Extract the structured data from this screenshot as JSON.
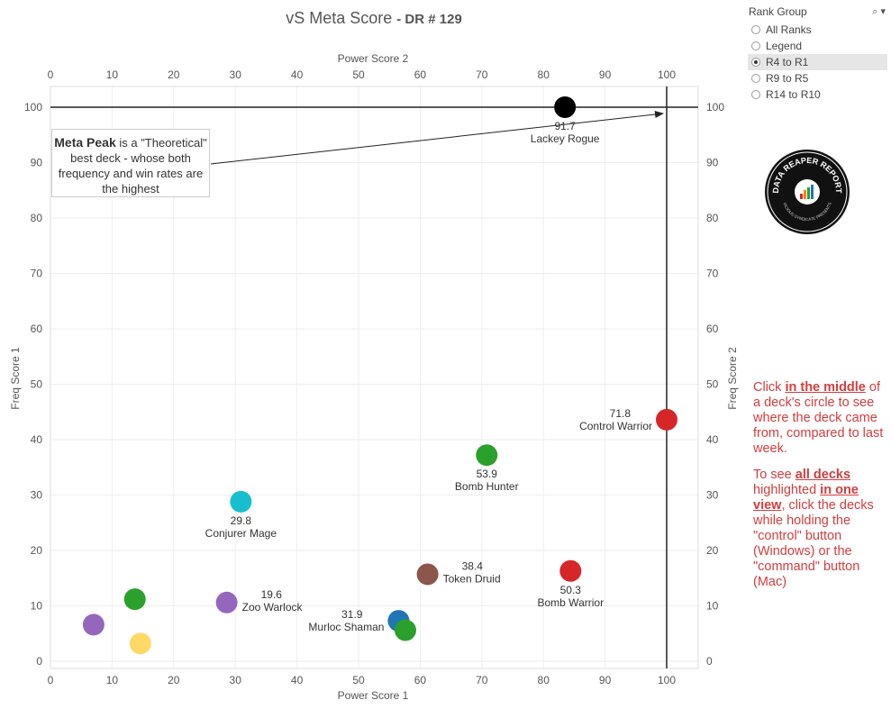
{
  "title": {
    "main": "vS Meta Score",
    "sub": "DR # 129"
  },
  "chart_data": {
    "type": "scatter",
    "x_top_label": "Power Score 2",
    "x_bottom_label": "Power Score 1",
    "y_left_label": "Freq Score 1",
    "y_right_label": "Freq Score 2",
    "xlim": [
      0,
      105
    ],
    "ylim": [
      0,
      105
    ],
    "x_ticks": [
      "0",
      "10",
      "20",
      "30",
      "40",
      "50",
      "60",
      "70",
      "80",
      "90",
      "100"
    ],
    "y_ticks": [
      "0",
      "10",
      "20",
      "30",
      "40",
      "50",
      "60",
      "70",
      "80",
      "90",
      "100"
    ],
    "meta_peak": {
      "x": 100,
      "y": 100
    },
    "points": [
      {
        "name": "Lackey Rogue",
        "score": "91.7",
        "x": 83.5,
        "y": 100,
        "color": "#000000"
      },
      {
        "name": "Control Warrior",
        "score": "71.8",
        "x": 100,
        "y": 43.6,
        "color": "#d62728"
      },
      {
        "name": "Bomb Hunter",
        "score": "53.9",
        "x": 70.8,
        "y": 37.2,
        "color": "#2ca02c"
      },
      {
        "name": "Conjurer Mage",
        "score": "29.8",
        "x": 30.9,
        "y": 28.8,
        "color": "#17becf"
      },
      {
        "name": "Token Druid",
        "score": "38.4",
        "x": 61.2,
        "y": 15.7,
        "color": "#8c564b"
      },
      {
        "name": "Bomb Warrior",
        "score": "50.3",
        "x": 84.4,
        "y": 16.3,
        "color": "#d62728"
      },
      {
        "name": "Zoo Warlock",
        "score": "19.6",
        "x": 28.6,
        "y": 10.6,
        "color": "#9467bd"
      },
      {
        "name": "Murloc Shaman",
        "score": "31.9",
        "x": 56.5,
        "y": 7.3,
        "color": "#1f77b4"
      },
      {
        "name": "",
        "score": "",
        "x": 57.6,
        "y": 5.6,
        "color": "#2ca02c"
      },
      {
        "name": "",
        "score": "",
        "x": 13.7,
        "y": 11.2,
        "color": "#2ca02c"
      },
      {
        "name": "",
        "score": "",
        "x": 7.0,
        "y": 6.6,
        "color": "#9467bd"
      },
      {
        "name": "",
        "score": "",
        "x": 14.6,
        "y": 3.2,
        "color": "#ffd966"
      }
    ]
  },
  "annotation": {
    "bold": "Meta Peak",
    "rest": " is a \"Theoretical\" best deck - whose both frequency and win rates are the highest"
  },
  "filter": {
    "title": "Rank Group",
    "icons": "⌕ ▾",
    "options": [
      "All Ranks",
      "Legend",
      "R4 to R1",
      "R9 to R5",
      "R14 to R10"
    ],
    "selected": "R4 to R1"
  },
  "logo": {
    "text_top": "DATA REAPER REPORT",
    "text_bottom": "VICIOUS SYNDICATE PRESENTS"
  },
  "instructions": {
    "p1": [
      "Click ",
      "in the middle",
      " of a deck's circle to see where the deck came from, compared to last week."
    ],
    "p2": [
      "To see ",
      "all decks ",
      "highlighted ",
      "in one view",
      ", click the decks while holding the \"control\" button (Windows) or the \"command\" button (Mac)"
    ]
  }
}
